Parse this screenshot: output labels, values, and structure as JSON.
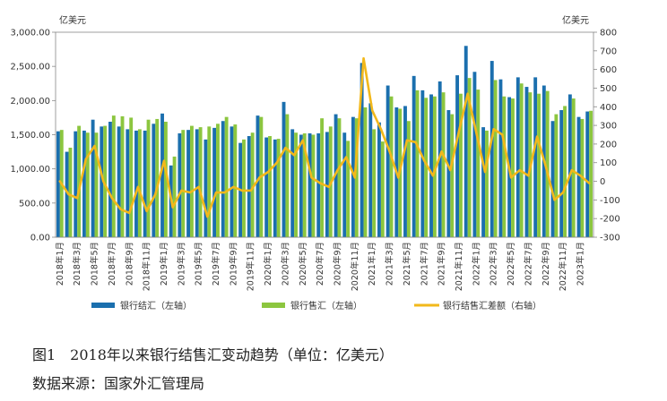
{
  "chart_data": {
    "type": "bar",
    "left_unit": "亿美元",
    "right_unit": "亿美元",
    "y_left": {
      "min": 0,
      "max": 3000,
      "ticks": [
        "0.00",
        "500.00",
        "1,000.00",
        "1,500.00",
        "2,000.00",
        "2,500.00",
        "3,000.00"
      ]
    },
    "y_right": {
      "min": -300,
      "max": 800,
      "ticks": [
        "-300",
        "-200",
        "-100",
        "0",
        "100",
        "200",
        "300",
        "400",
        "500",
        "600",
        "700",
        "800"
      ]
    },
    "x": [
      "2018年1月",
      "2018年2月",
      "2018年3月",
      "2018年4月",
      "2018年5月",
      "2018年6月",
      "2018年7月",
      "2018年8月",
      "2018年9月",
      "2018年10月",
      "2018年11月",
      "2018年12月",
      "2019年1月",
      "2019年2月",
      "2019年3月",
      "2019年4月",
      "2019年5月",
      "2019年6月",
      "2019年7月",
      "2019年8月",
      "2019年9月",
      "2019年10月",
      "2019年11月",
      "2019年12月",
      "2020年1月",
      "2020年2月",
      "2020年3月",
      "2020年4月",
      "2020年5月",
      "2020年6月",
      "2020年7月",
      "2020年8月",
      "2020年9月",
      "2020年10月",
      "2020年11月",
      "2020年12月",
      "2021年1月",
      "2021年2月",
      "2021年3月",
      "2021年4月",
      "2021年5月",
      "2021年6月",
      "2021年7月",
      "2021年8月",
      "2021年9月",
      "2021年10月",
      "2021年11月",
      "2021年12月",
      "2022年1月",
      "2022年2月",
      "2022年3月",
      "2022年4月",
      "2022年5月",
      "2022年6月",
      "2022年7月",
      "2022年8月",
      "2022年9月",
      "2022年10月",
      "2022年11月",
      "2022年12月",
      "2023年1月",
      "2023年2月"
    ],
    "x_tick_labels": [
      "2018年1月",
      "2018年3月",
      "2018年5月",
      "2018年7月",
      "2018年9月",
      "2018年11月",
      "2019年1月",
      "2019年3月",
      "2019年5月",
      "2019年7月",
      "2019年9月",
      "2019年11月",
      "2020年1月",
      "2020年3月",
      "2020年5月",
      "2020年7月",
      "2020年9月",
      "2020年11月",
      "2021年1月",
      "2021年3月",
      "2021年5月",
      "2021年7月",
      "2021年9月",
      "2021年11月",
      "2022年1月",
      "2022年3月",
      "2022年5月",
      "2022年7月",
      "2022年9月",
      "2022年11月",
      "2023年1月"
    ],
    "series": [
      {
        "name": "银行结汇（左轴）",
        "axis": "left",
        "kind": "bar",
        "color": "#1b6fae",
        "values": [
          1550,
          1250,
          1550,
          1560,
          1720,
          1620,
          1690,
          1620,
          1580,
          1560,
          1560,
          1660,
          1810,
          1050,
          1520,
          1570,
          1580,
          1430,
          1600,
          1700,
          1620,
          1380,
          1480,
          1780,
          1460,
          1430,
          1980,
          1580,
          1500,
          1520,
          1520,
          1540,
          1800,
          1530,
          1760,
          2550,
          1960,
          1680,
          2220,
          1900,
          1920,
          2360,
          2150,
          2090,
          2280,
          1860,
          2370,
          2800,
          2420,
          1610,
          2580,
          2310,
          2050,
          2340,
          2200,
          2340,
          2220,
          1700,
          1860,
          2090,
          1760,
          1840
        ]
      },
      {
        "name": "银行售汇（左轴）",
        "axis": "left",
        "kind": "bar",
        "color": "#8cc63f",
        "values": [
          1570,
          1310,
          1630,
          1530,
          1530,
          1630,
          1780,
          1770,
          1750,
          1580,
          1720,
          1730,
          1690,
          1180,
          1570,
          1630,
          1610,
          1620,
          1660,
          1760,
          1650,
          1430,
          1530,
          1760,
          1480,
          1440,
          1800,
          1530,
          1520,
          1500,
          1740,
          1620,
          1740,
          1410,
          1740,
          1900,
          1580,
          1400,
          2060,
          1880,
          1700,
          2150,
          2040,
          2060,
          2120,
          1800,
          2100,
          2330,
          2160,
          1560,
          2300,
          2060,
          2030,
          2250,
          2120,
          2100,
          2140,
          1800,
          1920,
          2030,
          1730,
          1850
        ]
      },
      {
        "name": "银行结售汇差额（右轴）",
        "axis": "right",
        "kind": "line",
        "color": "#f2b81b",
        "values": [
          0,
          -70,
          -90,
          120,
          190,
          0,
          -90,
          -150,
          -170,
          -30,
          -160,
          -70,
          110,
          -140,
          -50,
          -60,
          -30,
          -190,
          -60,
          -60,
          -30,
          -50,
          -50,
          20,
          50,
          100,
          180,
          140,
          220,
          20,
          -10,
          -30,
          60,
          130,
          20,
          660,
          380,
          280,
          160,
          20,
          220,
          210,
          110,
          30,
          160,
          60,
          270,
          470,
          260,
          50,
          280,
          250,
          20,
          60,
          30,
          240,
          80,
          -100,
          -60,
          60,
          30,
          -10
        ]
      }
    ]
  },
  "captions": {
    "figure": "图1　2018年以来银行结售汇变动趋势（单位：亿美元）",
    "source": "数据来源：国家外汇管理局"
  }
}
